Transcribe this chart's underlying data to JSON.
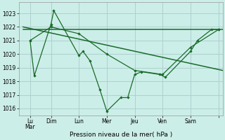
{
  "background_color": "#cceee8",
  "grid_color": "#aacccc",
  "line_color": "#1a6b2a",
  "xlabel": "Pression niveau de la mer( hPa )",
  "ylim": [
    1015.5,
    1023.8
  ],
  "yticks": [
    1016,
    1017,
    1018,
    1019,
    1020,
    1021,
    1022,
    1023
  ],
  "xlim": [
    -0.3,
    14.3
  ],
  "xtick_positions": [
    0.5,
    2,
    4,
    6,
    8,
    10,
    12,
    14
  ],
  "xtick_labels": [
    "Lu\nMar",
    "Dim",
    "Lun",
    "Mer",
    "Jeu",
    "Ven",
    "Sam",
    ""
  ],
  "series1": {
    "x": [
      0.5,
      0.8,
      2.0,
      2.2,
      4.0,
      4.3,
      4.8,
      5.5,
      6.0,
      7.0,
      7.5,
      8.0,
      8.5,
      9.8,
      10.2,
      12.0,
      12.5,
      13.5,
      14.0
    ],
    "y": [
      1021.0,
      1018.4,
      1022.2,
      1023.2,
      1019.9,
      1020.2,
      1019.5,
      1017.4,
      1015.8,
      1016.8,
      1016.8,
      1018.5,
      1018.7,
      1018.5,
      1018.3,
      1020.2,
      1021.0,
      1021.8,
      1021.8
    ]
  },
  "series2": {
    "x": [
      0.5,
      2.0,
      4.0,
      6.0,
      8.0,
      10.0,
      12.0,
      14.0
    ],
    "y": [
      1021.0,
      1022.0,
      1021.5,
      1020.0,
      1018.8,
      1018.5,
      1020.5,
      1021.8
    ]
  },
  "series3_descending": {
    "x": [
      0.0,
      14.3
    ],
    "y": [
      1022.0,
      1018.8
    ]
  },
  "series4_flat": {
    "x": [
      0.0,
      14.3
    ],
    "y": [
      1021.8,
      1021.8
    ]
  }
}
